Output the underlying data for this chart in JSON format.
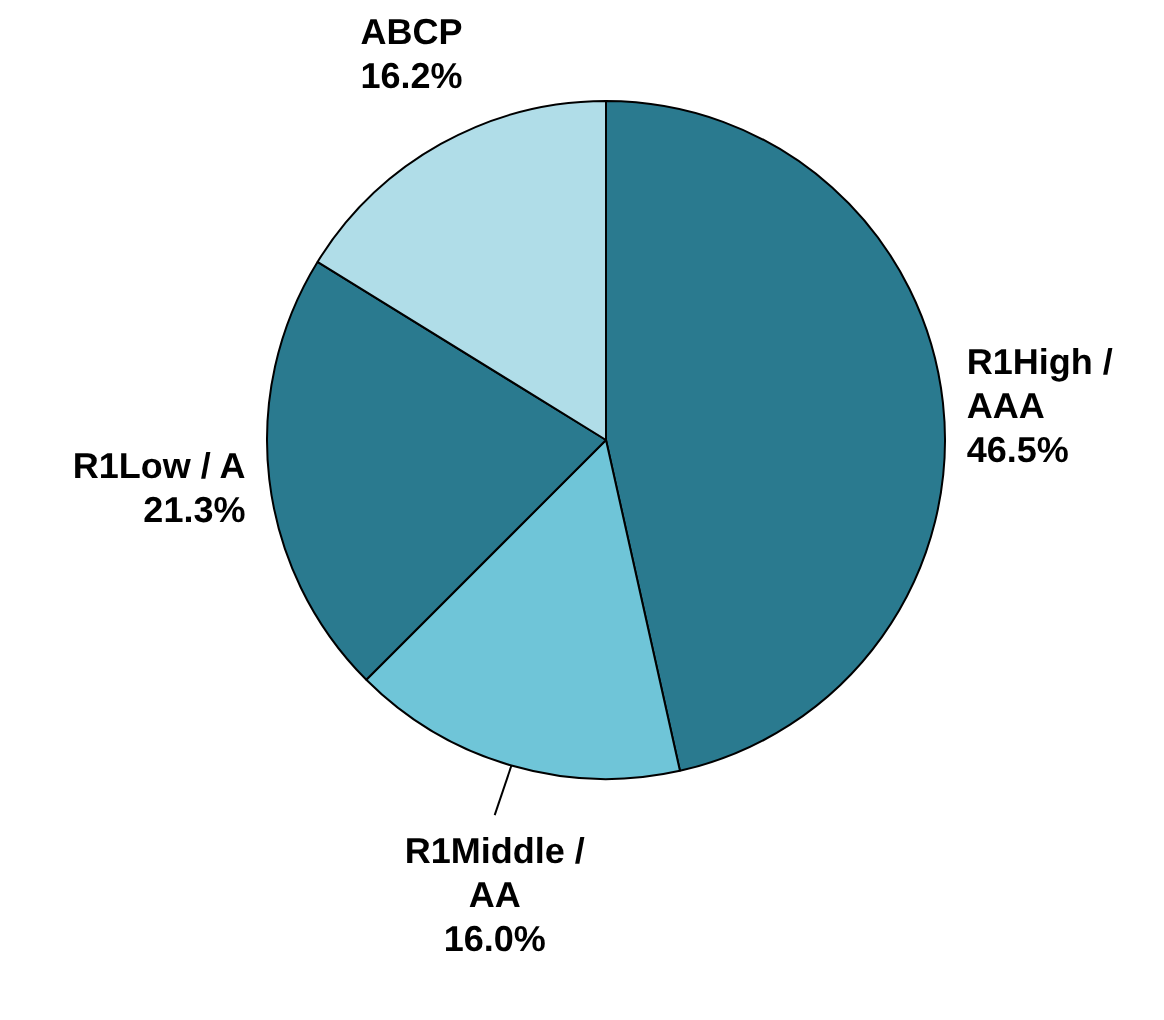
{
  "chart_data": {
    "type": "pie",
    "categories": [
      "R1High / AAA",
      "R1Middle / AA",
      "R1Low / A",
      "ABCP"
    ],
    "values": [
      46.5,
      16.0,
      21.3,
      16.2
    ],
    "value_labels": [
      "46.5%",
      "16.0%",
      "21.3%",
      "16.2%"
    ],
    "colors": [
      "#2a7a8f",
      "#6fc5d8",
      "#2a7a8f",
      "#b0dde8"
    ],
    "legend": false
  }
}
